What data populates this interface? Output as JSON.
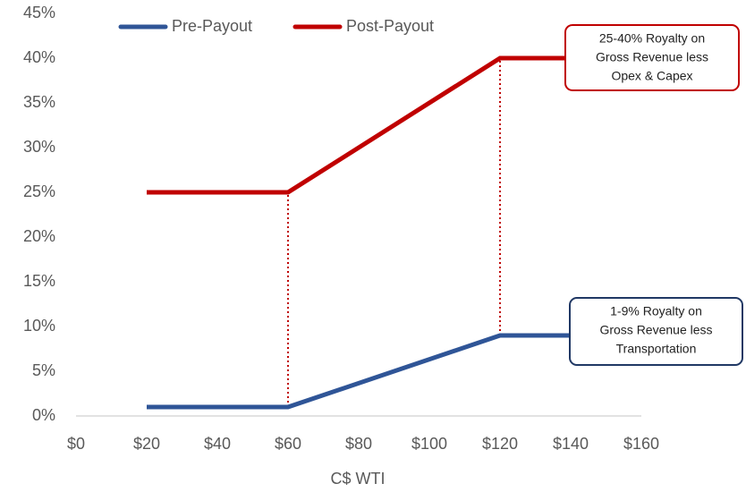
{
  "chart_data": {
    "type": "line",
    "x_label": "C$ WTI",
    "x": [
      20,
      60,
      120,
      140
    ],
    "series": [
      {
        "name": "Pre-Payout",
        "color": "#2f5597",
        "values": [
          1,
          1,
          9,
          9
        ]
      },
      {
        "name": "Post-Payout",
        "color": "#c00000",
        "values": [
          25,
          25,
          40,
          40
        ]
      }
    ],
    "xlim": [
      0,
      160
    ],
    "xticks": [
      {
        "value": 0,
        "label": "$0"
      },
      {
        "value": 20,
        "label": "$20"
      },
      {
        "value": 40,
        "label": "$40"
      },
      {
        "value": 60,
        "label": "$60"
      },
      {
        "value": 80,
        "label": "$80"
      },
      {
        "value": 100,
        "label": "$100"
      },
      {
        "value": 120,
        "label": "$120"
      },
      {
        "value": 140,
        "label": "$140"
      },
      {
        "value": 160,
        "label": "$160"
      }
    ],
    "ylim": [
      0,
      45
    ],
    "yticks": [
      {
        "value": 0,
        "label": "0%"
      },
      {
        "value": 5,
        "label": "5%"
      },
      {
        "value": 10,
        "label": "10%"
      },
      {
        "value": 15,
        "label": "15%"
      },
      {
        "value": 20,
        "label": "20%"
      },
      {
        "value": 25,
        "label": "25%"
      },
      {
        "value": 30,
        "label": "30%"
      },
      {
        "value": 35,
        "label": "35%"
      },
      {
        "value": 40,
        "label": "40%"
      },
      {
        "value": 45,
        "label": "45%"
      }
    ],
    "grid": false,
    "legend": "top",
    "annotations": [
      {
        "lines": [
          "25-40% Royalty on",
          "Gross Revenue less",
          "Opex & Capex"
        ],
        "color": "#c00000"
      },
      {
        "lines": [
          "1-9% Royalty on",
          "Gross Revenue less",
          "Transportation"
        ],
        "color": "#203864"
      }
    ]
  }
}
